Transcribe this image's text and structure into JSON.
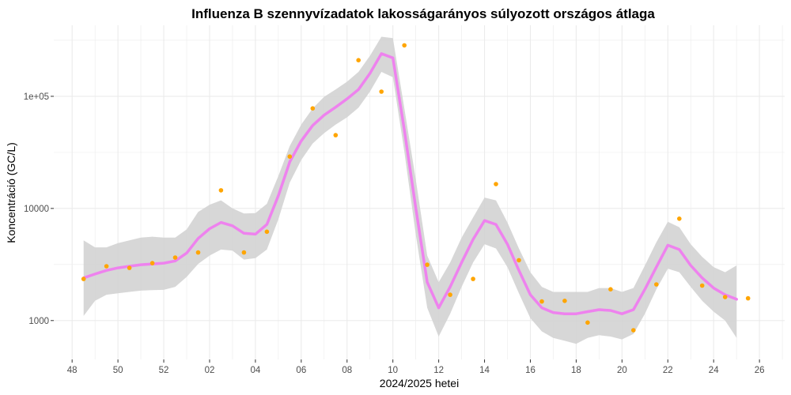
{
  "chart_data": {
    "type": "scatter",
    "title": "Influenza B szennyvízadatok lakosságarányos súlyozott országos átlaga",
    "xlabel": "2024/2025 hetei",
    "ylabel": "Koncentráció (GC/L)",
    "y_scale": "log10",
    "ylim": [
      450,
      430000
    ],
    "xlim": [
      47.2,
      79.1
    ],
    "x_ticks": [
      {
        "x": 48,
        "label": "48"
      },
      {
        "x": 50,
        "label": "50"
      },
      {
        "x": 52,
        "label": "52"
      },
      {
        "x": 54,
        "label": "02"
      },
      {
        "x": 56,
        "label": "04"
      },
      {
        "x": 58,
        "label": "06"
      },
      {
        "x": 60,
        "label": "08"
      },
      {
        "x": 62,
        "label": "10"
      },
      {
        "x": 64,
        "label": "12"
      },
      {
        "x": 66,
        "label": "14"
      },
      {
        "x": 68,
        "label": "16"
      },
      {
        "x": 70,
        "label": "18"
      },
      {
        "x": 72,
        "label": "20"
      },
      {
        "x": 74,
        "label": "22"
      },
      {
        "x": 76,
        "label": "24"
      },
      {
        "x": 78,
        "label": "26"
      }
    ],
    "y_ticks": [
      {
        "y": 1000,
        "label": "1000"
      },
      {
        "y": 10000,
        "label": "10000"
      },
      {
        "y": 100000,
        "label": "1e+05"
      }
    ],
    "grid": true,
    "colors": {
      "points": "#ffa500",
      "smooth": "#ee82ee",
      "ribbon": "#d3d3d3",
      "grid": "#ebebeb"
    },
    "series": [
      {
        "type": "points",
        "points": [
          [
            48.5,
            2350
          ],
          [
            49.5,
            3050
          ],
          [
            50.5,
            2950
          ],
          [
            51.5,
            3250
          ],
          [
            52.5,
            3650
          ],
          [
            53.5,
            4050
          ],
          [
            54.5,
            14500
          ],
          [
            55.5,
            4050
          ],
          [
            56.5,
            6200
          ],
          [
            57.5,
            29000
          ],
          [
            58.5,
            78000
          ],
          [
            59.5,
            45000
          ],
          [
            60.5,
            210000
          ],
          [
            61.5,
            110000
          ],
          [
            62.5,
            285000
          ],
          [
            63.5,
            3150
          ],
          [
            64.5,
            1700
          ],
          [
            65.5,
            2350
          ],
          [
            66.5,
            16500
          ],
          [
            67.5,
            3450
          ],
          [
            68.5,
            1480
          ],
          [
            69.5,
            1500
          ],
          [
            70.5,
            960
          ],
          [
            71.5,
            1900
          ],
          [
            72.5,
            820
          ],
          [
            73.5,
            2100
          ],
          [
            74.5,
            8100
          ],
          [
            75.5,
            2050
          ],
          [
            76.5,
            1620
          ],
          [
            77.5,
            1580
          ]
        ]
      },
      {
        "type": "smooth",
        "line": [
          [
            48.5,
            2400
          ],
          [
            49,
            2600
          ],
          [
            49.5,
            2800
          ],
          [
            50,
            2950
          ],
          [
            50.5,
            3050
          ],
          [
            51,
            3150
          ],
          [
            51.5,
            3200
          ],
          [
            52,
            3250
          ],
          [
            52.5,
            3400
          ],
          [
            53,
            4000
          ],
          [
            53.5,
            5400
          ],
          [
            54,
            6600
          ],
          [
            54.5,
            7500
          ],
          [
            55,
            7000
          ],
          [
            55.5,
            6000
          ],
          [
            56,
            5900
          ],
          [
            56.5,
            7200
          ],
          [
            57,
            13000
          ],
          [
            57.5,
            26000
          ],
          [
            58,
            40000
          ],
          [
            58.5,
            55000
          ],
          [
            59,
            68000
          ],
          [
            59.5,
            80000
          ],
          [
            60,
            95000
          ],
          [
            60.5,
            115000
          ],
          [
            61,
            160000
          ],
          [
            61.5,
            240000
          ],
          [
            62,
            220000
          ],
          [
            62.5,
            50000
          ],
          [
            63,
            10000
          ],
          [
            63.5,
            2200
          ],
          [
            64,
            1300
          ],
          [
            64.5,
            2000
          ],
          [
            65,
            3300
          ],
          [
            65.5,
            5300
          ],
          [
            66,
            7800
          ],
          [
            66.5,
            7200
          ],
          [
            67,
            4800
          ],
          [
            67.5,
            2800
          ],
          [
            68,
            1700
          ],
          [
            68.5,
            1300
          ],
          [
            69,
            1180
          ],
          [
            69.5,
            1150
          ],
          [
            70,
            1150
          ],
          [
            70.5,
            1200
          ],
          [
            71,
            1250
          ],
          [
            71.5,
            1230
          ],
          [
            72,
            1150
          ],
          [
            72.5,
            1250
          ],
          [
            73,
            1900
          ],
          [
            73.5,
            3000
          ],
          [
            74,
            4700
          ],
          [
            74.5,
            4300
          ],
          [
            75,
            3100
          ],
          [
            75.5,
            2400
          ],
          [
            76,
            1950
          ],
          [
            76.5,
            1700
          ],
          [
            77,
            1550
          ]
        ],
        "ribbon_upper": [
          [
            48.5,
            5200
          ],
          [
            49,
            4500
          ],
          [
            49.5,
            4500
          ],
          [
            50,
            4900
          ],
          [
            50.5,
            5200
          ],
          [
            51,
            5500
          ],
          [
            51.5,
            5600
          ],
          [
            52,
            5500
          ],
          [
            52.5,
            5500
          ],
          [
            53,
            6500
          ],
          [
            53.5,
            9300
          ],
          [
            54,
            10800
          ],
          [
            54.5,
            11800
          ],
          [
            55,
            10000
          ],
          [
            55.5,
            9000
          ],
          [
            56,
            9100
          ],
          [
            56.5,
            11000
          ],
          [
            57,
            19500
          ],
          [
            57.5,
            36000
          ],
          [
            58,
            56000
          ],
          [
            58.5,
            78000
          ],
          [
            59,
            99000
          ],
          [
            59.5,
            115000
          ],
          [
            60,
            135000
          ],
          [
            60.5,
            165000
          ],
          [
            61,
            230000
          ],
          [
            61.5,
            340000
          ],
          [
            62,
            330000
          ],
          [
            62.5,
            78000
          ],
          [
            63,
            18000
          ],
          [
            63.5,
            3800
          ],
          [
            64,
            2200
          ],
          [
            64.5,
            3300
          ],
          [
            65,
            5500
          ],
          [
            65.5,
            8300
          ],
          [
            66,
            12500
          ],
          [
            66.5,
            11800
          ],
          [
            67,
            7500
          ],
          [
            67.5,
            4400
          ],
          [
            68,
            2700
          ],
          [
            68.5,
            2000
          ],
          [
            69,
            1800
          ],
          [
            69.5,
            1800
          ],
          [
            70,
            1800
          ],
          [
            70.5,
            1800
          ],
          [
            71,
            1950
          ],
          [
            71.5,
            1950
          ],
          [
            72,
            1800
          ],
          [
            72.5,
            1950
          ],
          [
            73,
            3100
          ],
          [
            73.5,
            5000
          ],
          [
            74,
            7600
          ],
          [
            74.5,
            6800
          ],
          [
            75,
            4800
          ],
          [
            75.5,
            3700
          ],
          [
            76,
            3000
          ],
          [
            76.5,
            2700
          ],
          [
            77,
            3100
          ]
        ],
        "ribbon_lower": [
          [
            48.5,
            1100
          ],
          [
            49,
            1500
          ],
          [
            49.5,
            1700
          ],
          [
            50,
            1750
          ],
          [
            50.5,
            1800
          ],
          [
            51,
            1850
          ],
          [
            51.5,
            1870
          ],
          [
            52,
            1880
          ],
          [
            52.5,
            2000
          ],
          [
            53,
            2450
          ],
          [
            53.5,
            3200
          ],
          [
            54,
            3800
          ],
          [
            54.5,
            4300
          ],
          [
            55,
            4200
          ],
          [
            55.5,
            3500
          ],
          [
            56,
            3600
          ],
          [
            56.5,
            4300
          ],
          [
            57,
            8000
          ],
          [
            57.5,
            17000
          ],
          [
            58,
            27000
          ],
          [
            58.5,
            38000
          ],
          [
            59,
            47000
          ],
          [
            59.5,
            56000
          ],
          [
            60,
            65000
          ],
          [
            60.5,
            79000
          ],
          [
            61,
            110000
          ],
          [
            61.5,
            165000
          ],
          [
            62,
            148000
          ],
          [
            62.5,
            32000
          ],
          [
            63,
            5800
          ],
          [
            63.5,
            1300
          ],
          [
            64,
            720
          ],
          [
            64.5,
            1150
          ],
          [
            65,
            2000
          ],
          [
            65.5,
            3300
          ],
          [
            66,
            4800
          ],
          [
            66.5,
            4400
          ],
          [
            67,
            3000
          ],
          [
            67.5,
            1750
          ],
          [
            68,
            1050
          ],
          [
            68.5,
            800
          ],
          [
            69,
            700
          ],
          [
            69.5,
            660
          ],
          [
            70,
            620
          ],
          [
            70.5,
            700
          ],
          [
            71,
            740
          ],
          [
            71.5,
            720
          ],
          [
            72,
            680
          ],
          [
            72.5,
            760
          ],
          [
            73,
            1150
          ],
          [
            73.5,
            1900
          ],
          [
            74,
            2900
          ],
          [
            74.5,
            2700
          ],
          [
            75,
            2000
          ],
          [
            75.5,
            1500
          ],
          [
            76,
            1200
          ],
          [
            76.5,
            1000
          ],
          [
            77,
            700
          ]
        ]
      }
    ]
  }
}
